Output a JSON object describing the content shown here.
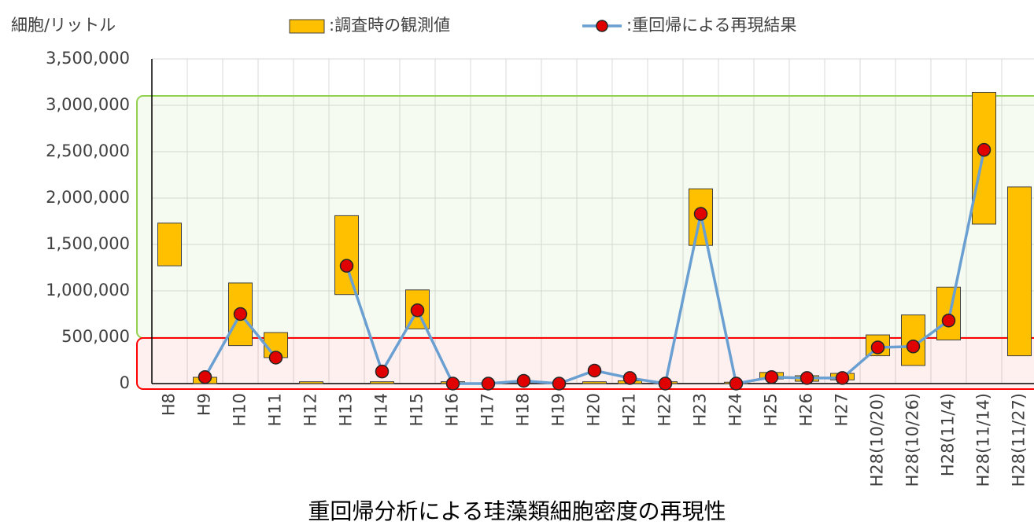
{
  "chart_data": {
    "type": "combo",
    "title": "重回帰分析による珪藻類細胞密度の再現性",
    "y_label": "細胞/リットル",
    "categories": [
      "H8",
      "H9",
      "H10",
      "H11",
      "H12",
      "H13",
      "H14",
      "H15",
      "H16",
      "H17",
      "H18",
      "H19",
      "H20",
      "H21",
      "H22",
      "H23",
      "H24",
      "H25",
      "H26",
      "H27",
      "H28(10/20)",
      "H28(10/26)",
      "H28(11/4)",
      "H28(11/14)",
      "H28(11/27)"
    ],
    "series": [
      {
        "name": ":調査時の観測値",
        "type": "range_bar",
        "color": "#ffc000",
        "low": [
          1270000,
          0,
          410000,
          280000,
          0,
          960000,
          0,
          590000,
          0,
          null,
          null,
          null,
          0,
          0,
          0,
          1490000,
          0,
          50000,
          25000,
          40000,
          300000,
          195000,
          470000,
          1720000,
          300000
        ],
        "high": [
          1730000,
          68000,
          1085000,
          550000,
          20000,
          1810000,
          20000,
          1010000,
          20000,
          null,
          null,
          null,
          20000,
          30000,
          20000,
          2100000,
          15000,
          120000,
          85000,
          110000,
          525000,
          740000,
          1040000,
          3140000,
          2120000
        ]
      },
      {
        "name": ":重回帰による再現結果",
        "type": "line",
        "color": "#6a9fd2",
        "marker_color": "#e00000",
        "values": [
          null,
          70000,
          750000,
          280000,
          null,
          1270000,
          130000,
          790000,
          0,
          0,
          30000,
          0,
          140000,
          60000,
          0,
          1830000,
          0,
          70000,
          60000,
          60000,
          390000,
          400000,
          680000,
          2520000,
          null
        ]
      }
    ],
    "ylim": [
      0,
      3500000
    ],
    "yticks": [
      0,
      {
        "value": 500000,
        "label": "500,000"
      },
      {
        "value": 1000000,
        "label": "1,000,000"
      },
      {
        "value": 1500000,
        "label": "1,500,000"
      },
      {
        "value": 2000000,
        "label": "2,000,000"
      },
      {
        "value": 2500000,
        "label": "2,500,000"
      },
      {
        "value": 3000000,
        "label": "3,000,000"
      },
      {
        "value": 3500000,
        "label": "3,500,000"
      }
    ],
    "grid": true
  }
}
